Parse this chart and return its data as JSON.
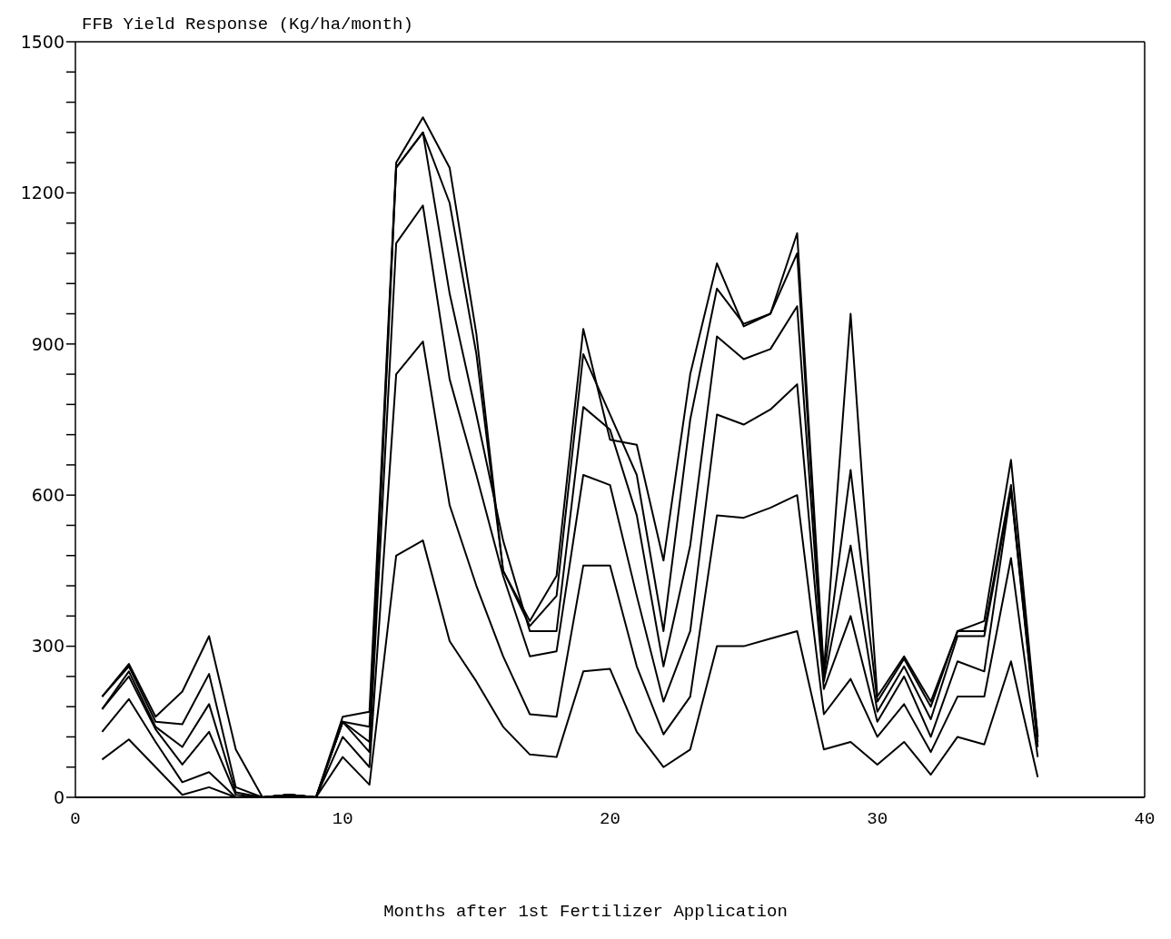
{
  "chart_data": {
    "type": "line",
    "ylabel": "FFB Yield Response (Kg/ha/month)",
    "xlabel": "Months after 1st Fertilizer Application",
    "x": [
      1,
      2,
      3,
      4,
      5,
      6,
      7,
      8,
      9,
      10,
      11,
      12,
      13,
      14,
      15,
      16,
      17,
      18,
      19,
      20,
      21,
      22,
      23,
      24,
      25,
      26,
      27,
      28,
      29,
      30,
      31,
      32,
      33,
      34,
      35,
      36
    ],
    "series": [
      {
        "color": "#000000",
        "values": [
          75,
          115,
          60,
          5,
          20,
          0,
          0,
          5,
          0,
          80,
          25,
          480,
          510,
          310,
          230,
          140,
          85,
          80,
          250,
          255,
          130,
          60,
          95,
          300,
          300,
          315,
          330,
          95,
          110,
          65,
          110,
          45,
          120,
          105,
          270,
          40
        ]
      },
      {
        "color": "#000000",
        "values": [
          130,
          195,
          110,
          30,
          50,
          0,
          0,
          5,
          0,
          120,
          60,
          840,
          905,
          580,
          420,
          280,
          165,
          160,
          460,
          460,
          260,
          125,
          200,
          560,
          555,
          575,
          600,
          165,
          235,
          120,
          185,
          90,
          200,
          200,
          475,
          80
        ]
      },
      {
        "color": "#000000",
        "values": [
          175,
          240,
          135,
          65,
          130,
          5,
          0,
          5,
          0,
          150,
          90,
          1100,
          1175,
          830,
          640,
          440,
          280,
          290,
          640,
          620,
          400,
          190,
          330,
          760,
          740,
          770,
          820,
          215,
          360,
          150,
          240,
          120,
          270,
          250,
          610,
          100
        ]
      },
      {
        "color": "#000000",
        "values": [
          175,
          250,
          140,
          100,
          185,
          10,
          0,
          5,
          0,
          150,
          110,
          1250,
          1320,
          1000,
          760,
          510,
          330,
          330,
          775,
          730,
          560,
          260,
          500,
          915,
          870,
          890,
          975,
          230,
          500,
          170,
          260,
          155,
          320,
          320,
          610,
          110
        ]
      },
      {
        "color": "#000000",
        "values": [
          200,
          260,
          150,
          145,
          245,
          20,
          0,
          5,
          0,
          150,
          140,
          1250,
          1320,
          1180,
          880,
          450,
          340,
          400,
          880,
          760,
          640,
          330,
          750,
          1010,
          940,
          960,
          1080,
          240,
          650,
          190,
          275,
          180,
          330,
          330,
          620,
          120
        ]
      },
      {
        "color": "#000000",
        "values": [
          200,
          265,
          160,
          210,
          320,
          95,
          0,
          5,
          0,
          160,
          170,
          1260,
          1350,
          1250,
          920,
          450,
          350,
          440,
          930,
          710,
          700,
          470,
          840,
          1060,
          935,
          960,
          1120,
          250,
          960,
          200,
          280,
          190,
          330,
          350,
          670,
          120
        ]
      }
    ],
    "xlim": [
      0,
      40
    ],
    "xticks": [
      0,
      10,
      20,
      30,
      40
    ],
    "ylim": [
      0,
      1500
    ],
    "yticks": [
      0,
      {
        "value": 60,
        "label": null
      },
      {
        "value": 120,
        "label": null
      },
      {
        "value": 180,
        "label": null
      },
      {
        "value": 240,
        "label": null
      },
      300,
      {
        "value": 360,
        "label": null
      },
      {
        "value": 420,
        "label": null
      },
      {
        "value": 480,
        "label": null
      },
      {
        "value": 540,
        "label": null
      },
      600,
      {
        "value": 660,
        "label": null
      },
      {
        "value": 720,
        "label": null
      },
      {
        "value": 780,
        "label": null
      },
      {
        "value": 840,
        "label": null
      },
      900,
      {
        "value": 960,
        "label": null
      },
      {
        "value": 1020,
        "label": null
      },
      {
        "value": 1080,
        "label": null
      },
      {
        "value": 1140,
        "label": null
      },
      1200,
      {
        "value": 1260,
        "label": null
      },
      {
        "value": 1320,
        "label": null
      },
      {
        "value": 1380,
        "label": null
      },
      {
        "value": 1440,
        "label": null
      },
      1500
    ],
    "grid": false,
    "legend": false
  }
}
